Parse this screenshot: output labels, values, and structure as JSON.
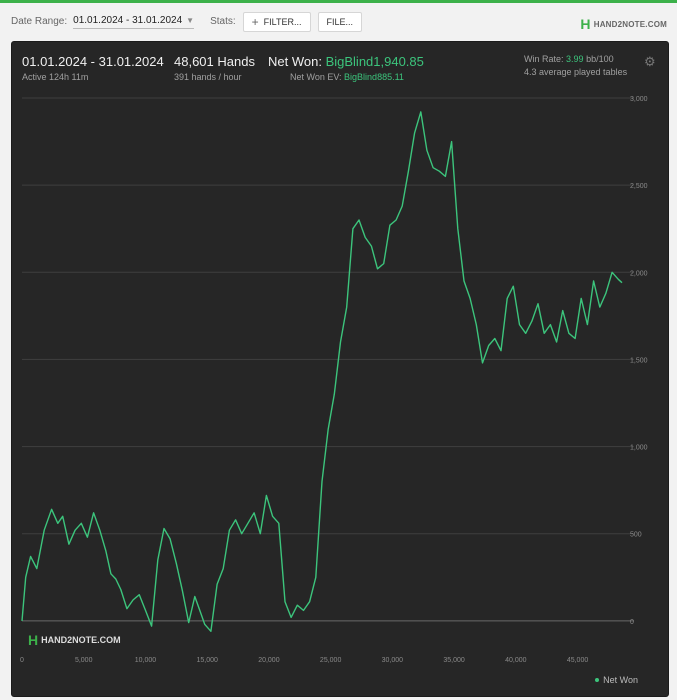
{
  "toolbar": {
    "date_range_label": "Date Range:",
    "date_range_value": "01.01.2024 - 31.01.2024",
    "stats_label": "Stats:",
    "filter_button": "FILTER...",
    "file_button": "FILE..."
  },
  "brand": {
    "logo_text": "HAND2NOTE.COM"
  },
  "summary": {
    "period": "01.01.2024 - 31.01.2024",
    "active": "Active 124h 11m",
    "hands": "48,601 Hands",
    "hands_rate": "391 hands / hour",
    "net_won_label": "Net Won:",
    "net_won_value": "BigBlind1,940.85",
    "net_won_ev_label": "Net Won  EV:",
    "net_won_ev_value": "BigBlind885.11",
    "win_rate_label": "Win Rate:",
    "win_rate_value": "3.99",
    "win_rate_unit": "bb/100",
    "avg_tables": "4.3 average played tables"
  },
  "colors": {
    "accent": "#3cc47c",
    "panel_bg": "#262626",
    "grid": "#4a4a4a"
  },
  "chart_data": {
    "type": "line",
    "xlim": [
      0,
      48601
    ],
    "ylim": [
      -150,
      3000
    ],
    "x_ticks": [
      "0",
      "5,000",
      "10,000",
      "15,000",
      "20,000",
      "25,000",
      "30,000",
      "35,000",
      "40,000",
      "45,000"
    ],
    "x_tick_values": [
      0,
      5000,
      10000,
      15000,
      20000,
      25000,
      30000,
      35000,
      40000,
      45000
    ],
    "y_ticks": [
      "0",
      "500",
      "1,000",
      "1,500",
      "2,000",
      "2,500",
      "3,000"
    ],
    "y_tick_values": [
      0,
      500,
      1000,
      1500,
      2000,
      2500,
      3000
    ],
    "series": [
      {
        "name": "Net Won",
        "x": [
          0,
          300,
          700,
          1200,
          1800,
          2400,
          2900,
          3300,
          3800,
          4300,
          4800,
          5300,
          5800,
          6300,
          6800,
          7200,
          7600,
          8000,
          8500,
          9000,
          9500,
          10000,
          10500,
          11000,
          11500,
          12000,
          12500,
          13000,
          13500,
          14000,
          14400,
          14800,
          15300,
          15800,
          16300,
          16800,
          17300,
          17800,
          18300,
          18800,
          19300,
          19800,
          20300,
          20800,
          21300,
          21800,
          22300,
          22800,
          23300,
          23800,
          24300,
          24800,
          25300,
          25800,
          26300,
          26800,
          27300,
          27800,
          28300,
          28800,
          29300,
          29800,
          30300,
          30800,
          31300,
          31800,
          32300,
          32800,
          33300,
          33800,
          34300,
          34800,
          35300,
          35800,
          36300,
          36800,
          37300,
          37800,
          38300,
          38800,
          39300,
          39800,
          40300,
          40800,
          41300,
          41800,
          42300,
          42800,
          43300,
          43800,
          44300,
          44800,
          45300,
          45800,
          46300,
          46800,
          47300,
          47800,
          48300,
          48601
        ],
        "values": [
          0,
          250,
          370,
          300,
          520,
          640,
          560,
          600,
          440,
          520,
          560,
          480,
          620,
          520,
          400,
          270,
          240,
          180,
          70,
          120,
          150,
          60,
          -30,
          350,
          530,
          470,
          330,
          170,
          -10,
          140,
          60,
          -20,
          -60,
          210,
          300,
          520,
          580,
          500,
          560,
          620,
          500,
          720,
          600,
          560,
          110,
          20,
          90,
          60,
          110,
          250,
          800,
          1100,
          1300,
          1600,
          1800,
          2250,
          2300,
          2200,
          2150,
          2020,
          2050,
          2270,
          2300,
          2380,
          2580,
          2800,
          2920,
          2700,
          2600,
          2580,
          2550,
          2750,
          2250,
          1950,
          1850,
          1700,
          1480,
          1580,
          1620,
          1550,
          1850,
          1920,
          1700,
          1650,
          1720,
          1820,
          1650,
          1700,
          1600,
          1780,
          1650,
          1620,
          1850,
          1700,
          1950,
          1800,
          1880,
          2000,
          1960,
          1940
        ]
      }
    ]
  }
}
